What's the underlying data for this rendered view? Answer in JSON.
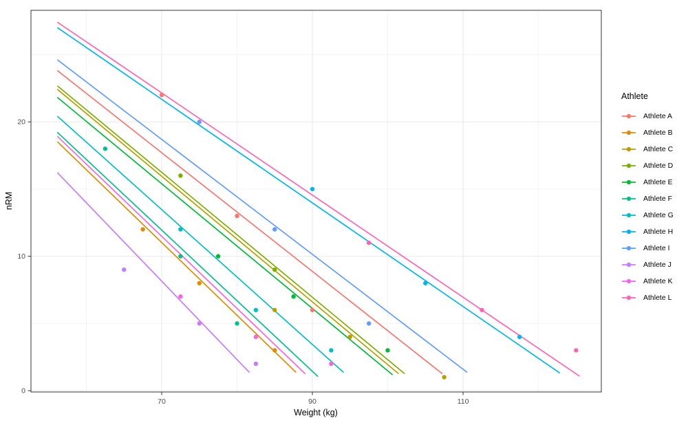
{
  "figure": {
    "xlabel": "Weight (kg)",
    "ylabel": "nRM",
    "legend_title": "Athlete"
  },
  "chart_data": {
    "type": "scatter",
    "title": "",
    "xlabel": "Weight (kg)",
    "ylabel": "nRM",
    "x_range": [
      52.65,
      128.35
    ],
    "y_range": [
      -0.1,
      28.3
    ],
    "x_major_ticks": [
      70,
      90,
      110
    ],
    "x_minor_ticks": [
      60,
      80,
      100,
      120
    ],
    "y_major_ticks": [
      0,
      10,
      20
    ],
    "y_minor_ticks": [
      5,
      15,
      25
    ],
    "grid": true,
    "legend_position": "right",
    "point_radius": 3.2,
    "line_width": 1.7,
    "colors": {
      "major_grid": "#e8e8e8",
      "minor_grid": "#f3f3f3",
      "panel_border": "#333333",
      "tick": "#333333",
      "axis_text": "#4d4d4d"
    },
    "series": [
      {
        "name": "Athlete A",
        "color": "#F8766D",
        "points": [
          [
            70,
            22
          ],
          [
            80,
            13
          ],
          [
            90,
            6
          ]
        ],
        "trend": {
          "x": [
            56.2,
            107.2
          ],
          "y": [
            23.8,
            1.28
          ]
        }
      },
      {
        "name": "Athlete B",
        "color": "#DE8C00",
        "points": [
          [
            67.5,
            12
          ],
          [
            75,
            8
          ],
          [
            85,
            3
          ]
        ],
        "trend": {
          "x": [
            56.2,
            87.8
          ],
          "y": [
            18.5,
            1.38
          ]
        }
      },
      {
        "name": "Athlete C",
        "color": "#B79F00",
        "points": [
          [
            85,
            6
          ],
          [
            95,
            4
          ],
          [
            107.5,
            1
          ]
        ],
        "trend": {
          "x": [
            56.2,
            101.4
          ],
          "y": [
            22.4,
            1.28
          ]
        }
      },
      {
        "name": "Athlete D",
        "color": "#7CAE00",
        "points": [
          [
            72.5,
            16
          ],
          [
            85,
            9
          ]
        ],
        "trend": {
          "x": [
            56.2,
            102.2
          ],
          "y": [
            22.66,
            1.28
          ]
        }
      },
      {
        "name": "Athlete E",
        "color": "#00BA38",
        "points": [
          [
            77.5,
            10
          ],
          [
            87.5,
            7
          ],
          [
            100,
            3
          ]
        ],
        "trend": {
          "x": [
            56.2,
            100.6
          ],
          "y": [
            21.8,
            1.2
          ]
        }
      },
      {
        "name": "Athlete F",
        "color": "#00C08B",
        "points": [
          [
            62.5,
            18
          ],
          [
            72.5,
            10
          ],
          [
            80,
            5
          ]
        ],
        "trend": {
          "x": [
            56.2,
            90.7
          ],
          "y": [
            19.2,
            1.07
          ]
        }
      },
      {
        "name": "Athlete G",
        "color": "#00BFC4",
        "points": [
          [
            72.5,
            12
          ],
          [
            82.5,
            6
          ],
          [
            92.5,
            3
          ]
        ],
        "trend": {
          "x": [
            56.2,
            94.1
          ],
          "y": [
            20.4,
            1.38
          ]
        }
      },
      {
        "name": "Athlete H",
        "color": "#00B4F0",
        "points": [
          [
            90,
            15
          ],
          [
            105,
            8
          ],
          [
            117.5,
            4
          ]
        ],
        "trend": {
          "x": [
            56.2,
            122.8
          ],
          "y": [
            27.0,
            1.33
          ]
        }
      },
      {
        "name": "Athlete I",
        "color": "#619CFF",
        "points": [
          [
            75,
            20
          ],
          [
            85,
            12
          ],
          [
            97.5,
            5
          ]
        ],
        "trend": {
          "x": [
            56.2,
            110.5
          ],
          "y": [
            24.6,
            1.38
          ]
        }
      },
      {
        "name": "Athlete J",
        "color": "#C77CFF",
        "points": [
          [
            65,
            9
          ],
          [
            75,
            5
          ],
          [
            82.5,
            2
          ]
        ],
        "trend": {
          "x": [
            56.2,
            81.6
          ],
          "y": [
            16.2,
            1.38
          ]
        }
      },
      {
        "name": "Athlete K",
        "color": "#F564E3",
        "points": [
          [
            72.5,
            7
          ],
          [
            82.5,
            4
          ],
          [
            92.5,
            2
          ]
        ],
        "trend": {
          "x": [
            56.2,
            89.0
          ],
          "y": [
            18.9,
            1.28
          ]
        }
      },
      {
        "name": "Athlete L",
        "color": "#FF64B0",
        "points": [
          [
            97.5,
            11
          ],
          [
            112.5,
            6
          ],
          [
            125,
            3
          ]
        ],
        "trend": {
          "x": [
            56.2,
            125.4
          ],
          "y": [
            27.4,
            1.1
          ]
        }
      }
    ]
  }
}
